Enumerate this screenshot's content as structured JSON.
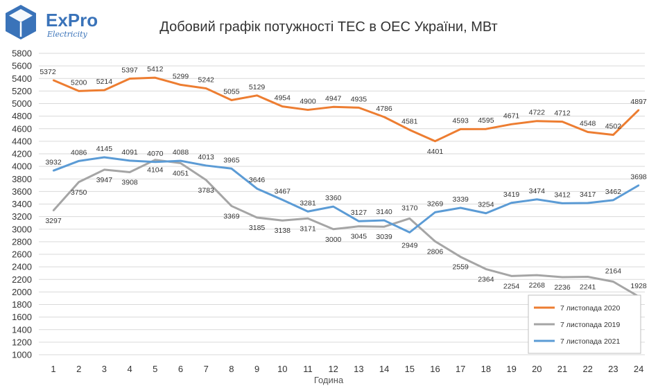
{
  "brand": {
    "name": "ExPro",
    "tagline": "Electricity",
    "logo_color": "#3a73b9"
  },
  "chart_data": {
    "type": "line",
    "title": "Добовий графік потужності ТЕС в ОЕС України, МВт",
    "xlabel": "Година",
    "ylabel": "",
    "x": [
      1,
      2,
      3,
      4,
      5,
      6,
      7,
      8,
      9,
      10,
      11,
      12,
      13,
      14,
      15,
      16,
      17,
      18,
      19,
      20,
      21,
      22,
      23,
      24
    ],
    "ylim": [
      1000,
      5800
    ],
    "ytick_step": 200,
    "grid": "horizontal",
    "legend_position": "bottom-right",
    "series": [
      {
        "name": "7 листопада 2020",
        "color": "#ed7d31",
        "values": [
          5372,
          5200,
          5214,
          5397,
          5412,
          5299,
          5242,
          5055,
          5129,
          4954,
          4900,
          4947,
          4935,
          4786,
          4581,
          4401,
          4593,
          4595,
          4671,
          4722,
          4712,
          4548,
          4502,
          4897
        ]
      },
      {
        "name": "7 листопада 2019",
        "color": "#a5a5a5",
        "values": [
          3297,
          3750,
          3947,
          3908,
          4104,
          4051,
          3783,
          3369,
          3185,
          3138,
          3171,
          3000,
          3045,
          3039,
          3170,
          2806,
          2559,
          2364,
          2254,
          2268,
          2236,
          2241,
          2164,
          1928
        ]
      },
      {
        "name": "7 листопада 2021",
        "color": "#5b9bd5",
        "values": [
          3932,
          4086,
          4145,
          4091,
          4070,
          4088,
          4013,
          3965,
          3646,
          3467,
          3281,
          3360,
          3127,
          3140,
          2949,
          3269,
          3339,
          3254,
          3419,
          3474,
          3412,
          3417,
          3462,
          3698
        ]
      }
    ]
  }
}
